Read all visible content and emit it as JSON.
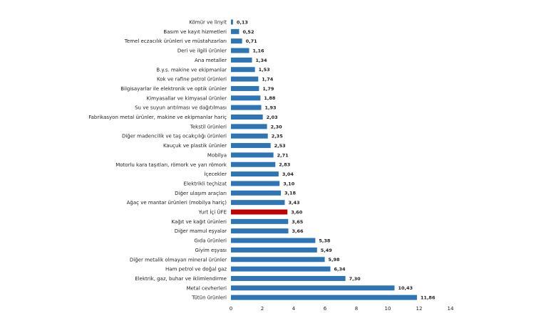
{
  "chart_data": {
    "type": "bar",
    "orientation": "horizontal",
    "categories": [
      "Kömür ve linyit",
      "Basım ve kayıt hizmetleri",
      "Temel eczacılık ürünleri ve müstahzarları",
      "Deri ve ilgili ürünler",
      "Ana metaller",
      "B.y.s. makine ve ekipmanlar",
      "Kok ve rafine petrol ürünleri",
      "Bilgisayarlar ile elektronik ve optik ürünler",
      "Kimyasallar ve kimyasal ürünler",
      "Su ve suyun arıtılması ve dağıtılması",
      "Fabrikasyon metal ürünler, makine ve ekipmanlar hariç",
      "Tekstil ürünleri",
      "Diğer madencilik ve taş ocakçılığı ürünleri",
      "Kauçuk ve plastik ürünler",
      "Mobilya",
      "Motorlu kara taşıtları, römork ve yarı römork",
      "İçecekler",
      "Elektrikli teçhizat",
      "Diğer ulaşım araçları",
      "Ağaç ve mantar ürünleri (mobilya hariç)",
      "Yurt İçi ÜFE",
      "Kağıt ve kağıt ürünleri",
      "Diğer mamul eşyalar",
      "Gıda ürünleri",
      "Giyim eşyası",
      "Diğer metalik olmayan mineral ürünler",
      "Ham petrol ve doğal gaz",
      "Elektrik, gaz, buhar ve iklimlendirme",
      "Metal cevherleri",
      "Tütün ürünleri"
    ],
    "values": [
      0.13,
      0.52,
      0.71,
      1.16,
      1.34,
      1.53,
      1.74,
      1.79,
      1.88,
      1.93,
      2.03,
      2.3,
      2.35,
      2.53,
      2.71,
      2.83,
      3.04,
      3.1,
      3.18,
      3.43,
      3.6,
      3.65,
      3.66,
      5.38,
      5.49,
      5.98,
      6.34,
      7.3,
      10.43,
      11.86
    ],
    "value_labels": [
      "0,13",
      "0,52",
      "0,71",
      "1,16",
      "1,34",
      "1,53",
      "1,74",
      "1,79",
      "1,88",
      "1,93",
      "2,03",
      "2,30",
      "2,35",
      "2,53",
      "2,71",
      "2,83",
      "3,04",
      "3,10",
      "3,18",
      "3,43",
      "3,60",
      "3,65",
      "3,66",
      "5,38",
      "5,49",
      "5,98",
      "6,34",
      "7,30",
      "10,43",
      "11,86"
    ],
    "highlight_category": "Yurt İçi ÜFE",
    "xlim": [
      0,
      14
    ],
    "x_ticks": [
      0,
      2,
      4,
      6,
      8,
      10,
      12,
      14
    ],
    "grid": false,
    "colors": {
      "bar": "#2e75b6",
      "highlight": "#c00000"
    }
  }
}
